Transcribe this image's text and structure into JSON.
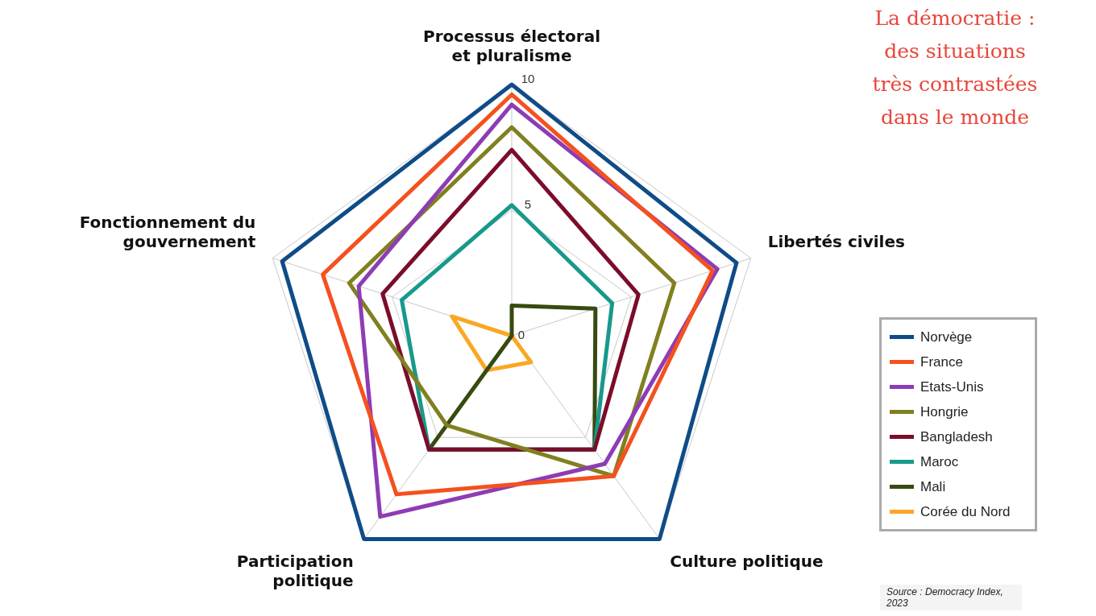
{
  "chart_data": {
    "type": "radar",
    "title": "La démocratie : des situations très contrastées dans le monde",
    "categories": [
      "Processus électoral et pluralisme",
      "Libertés civiles",
      "Culture politique",
      "Participation politique",
      "Fonctionnement du gouvernement"
    ],
    "series": [
      {
        "name": "Norvège",
        "color": "#0f4c87",
        "values": [
          10,
          9.4,
          10,
          10,
          9.6
        ]
      },
      {
        "name": "France",
        "color": "#f4511e",
        "values": [
          9.6,
          8.4,
          6.9,
          7.8,
          7.9
        ]
      },
      {
        "name": "Etats-Unis",
        "color": "#8e3cb4",
        "values": [
          9.2,
          8.6,
          6.3,
          8.9,
          6.4
        ]
      },
      {
        "name": "Hongrie",
        "color": "#808020",
        "values": [
          8.3,
          6.8,
          6.9,
          4.4,
          6.8
        ]
      },
      {
        "name": "Bangladesh",
        "color": "#7b0d2a",
        "values": [
          7.4,
          5.3,
          5.6,
          5.6,
          5.4
        ]
      },
      {
        "name": "Maroc",
        "color": "#17998c",
        "values": [
          5.2,
          4.2,
          5.6,
          5.6,
          4.6
        ]
      },
      {
        "name": "Mali",
        "color": "#374a10",
        "values": [
          1.2,
          3.5,
          5.6,
          5.6,
          0
        ]
      },
      {
        "name": "Corée du Nord",
        "color": "#f9a825",
        "values": [
          0,
          0,
          1.3,
          1.7,
          2.5
        ]
      }
    ],
    "ylim": [
      0,
      10
    ],
    "yticks": [
      0,
      5,
      10
    ],
    "grid": true,
    "legend": "bottom right",
    "marker": "none",
    "line_style": "solid",
    "annotations": [
      "Source : Democracy Index, 2023"
    ]
  }
}
